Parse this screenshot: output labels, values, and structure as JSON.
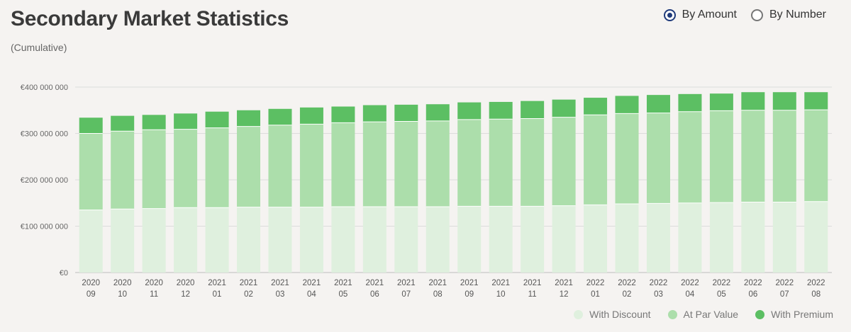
{
  "title": "Secondary Market Statistics",
  "subtitle": "(Cumulative)",
  "toggle": {
    "options": [
      {
        "label": "By Amount",
        "selected": true
      },
      {
        "label": "By Number",
        "selected": false
      }
    ]
  },
  "colors": {
    "discount": "#dff0de",
    "par": "#acdeab",
    "premium": "#5cbf63",
    "radio_selected": "#1f3a7a"
  },
  "chart_data": {
    "type": "bar",
    "stacked": true,
    "ylim": [
      0,
      400000000
    ],
    "yticks": [
      0,
      100000000,
      200000000,
      300000000,
      400000000
    ],
    "ytick_labels": [
      "€0",
      "€100 000 000",
      "€200 000 000",
      "€300 000 000",
      "€400 000 000"
    ],
    "categories": [
      [
        "2020",
        "09"
      ],
      [
        "2020",
        "10"
      ],
      [
        "2020",
        "11"
      ],
      [
        "2020",
        "12"
      ],
      [
        "2021",
        "01"
      ],
      [
        "2021",
        "02"
      ],
      [
        "2021",
        "03"
      ],
      [
        "2021",
        "04"
      ],
      [
        "2021",
        "05"
      ],
      [
        "2021",
        "06"
      ],
      [
        "2021",
        "07"
      ],
      [
        "2021",
        "08"
      ],
      [
        "2021",
        "09"
      ],
      [
        "2021",
        "10"
      ],
      [
        "2021",
        "11"
      ],
      [
        "2021",
        "12"
      ],
      [
        "2022",
        "01"
      ],
      [
        "2022",
        "02"
      ],
      [
        "2022",
        "03"
      ],
      [
        "2022",
        "04"
      ],
      [
        "2022",
        "05"
      ],
      [
        "2022",
        "06"
      ],
      [
        "2022",
        "07"
      ],
      [
        "2022",
        "08"
      ]
    ],
    "series": [
      {
        "name": "With Discount",
        "color_key": "discount",
        "values": [
          135000000,
          137000000,
          138000000,
          140000000,
          140000000,
          141000000,
          141000000,
          141000000,
          142000000,
          142000000,
          142000000,
          142000000,
          143000000,
          143000000,
          143000000,
          144000000,
          146000000,
          148000000,
          149000000,
          150000000,
          151000000,
          152000000,
          152000000,
          153000000
        ]
      },
      {
        "name": "At Par Value",
        "color_key": "par",
        "values": [
          165000000,
          168000000,
          170000000,
          169000000,
          172000000,
          174000000,
          177000000,
          179000000,
          181000000,
          183000000,
          184000000,
          185000000,
          187000000,
          188000000,
          189000000,
          191000000,
          194000000,
          195000000,
          195000000,
          197000000,
          198000000,
          198000000,
          198000000,
          198000000
        ]
      },
      {
        "name": "With Premium",
        "color_key": "premium",
        "values": [
          34000000,
          33000000,
          32000000,
          34000000,
          35000000,
          35000000,
          35000000,
          36000000,
          35000000,
          36000000,
          36000000,
          36000000,
          37000000,
          37000000,
          38000000,
          38000000,
          37000000,
          38000000,
          39000000,
          38000000,
          37000000,
          39000000,
          39000000,
          38000000
        ]
      }
    ]
  }
}
